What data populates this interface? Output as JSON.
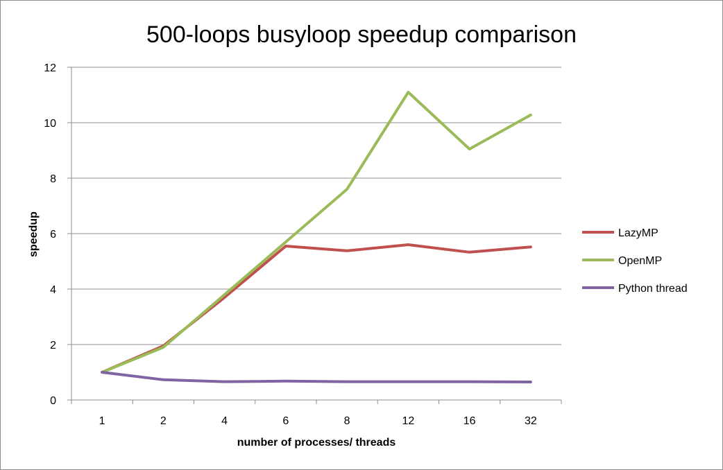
{
  "chart_data": {
    "type": "line",
    "title": "500-loops busyloop speedup comparison",
    "xlabel": "number of processes/ threads",
    "ylabel": "speedup",
    "categories": [
      "1",
      "2",
      "4",
      "6",
      "8",
      "12",
      "16",
      "32"
    ],
    "ylim": [
      0,
      12
    ],
    "yticks": [
      0,
      2,
      4,
      6,
      8,
      10,
      12
    ],
    "grid": true,
    "legend_position": "right",
    "series": [
      {
        "name": "LazyMP",
        "color": "#c0504d",
        "values": [
          1.0,
          1.95,
          3.7,
          5.55,
          5.38,
          5.6,
          5.33,
          5.52
        ]
      },
      {
        "name": "OpenMP",
        "color": "#9bbb59",
        "values": [
          1.0,
          1.9,
          3.8,
          5.7,
          7.6,
          11.1,
          9.05,
          10.28
        ]
      },
      {
        "name": "Python thread",
        "color": "#8064a2",
        "values": [
          1.0,
          0.73,
          0.66,
          0.68,
          0.66,
          0.66,
          0.66,
          0.65
        ]
      }
    ]
  }
}
